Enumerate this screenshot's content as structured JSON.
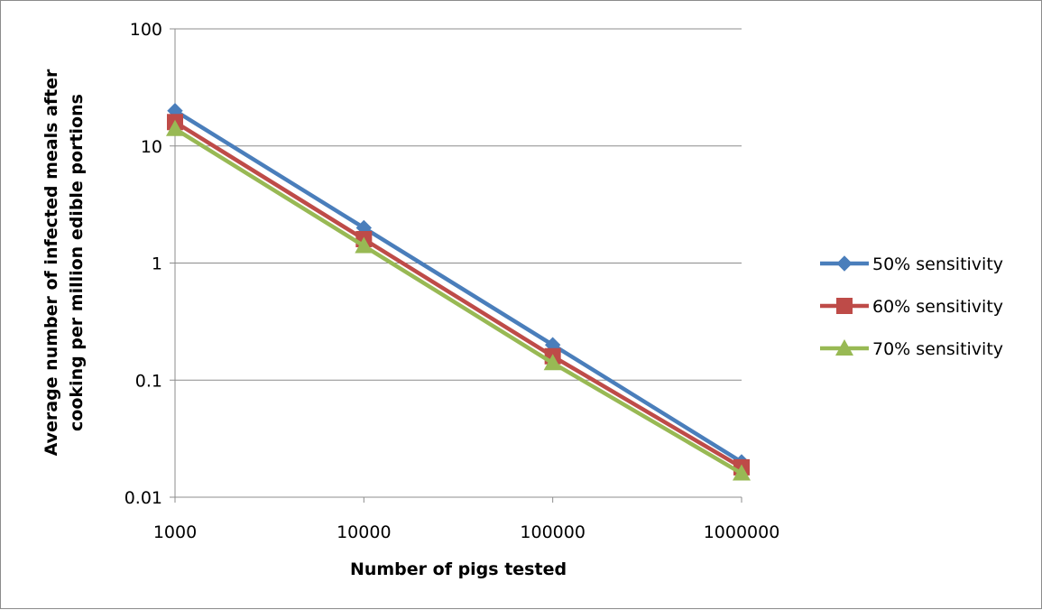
{
  "chart_data": {
    "type": "line",
    "title": "",
    "xlabel": "Number of pigs tested",
    "ylabel": "Average number of infected meals after cooking per million edible portions",
    "ylabel_lines": [
      "Average number of infected meals after",
      "cooking per million edible portions"
    ],
    "x_scale": "log",
    "y_scale": "log",
    "x": [
      1000,
      10000,
      100000,
      1000000
    ],
    "x_tick_labels": [
      "1000",
      "10000",
      "100000",
      "1000000"
    ],
    "y_ticks": [
      0.01,
      0.1,
      1,
      10,
      100
    ],
    "y_tick_labels": [
      "0.01",
      "0.1",
      "1",
      "10",
      "100"
    ],
    "xlim": [
      1000,
      1000000
    ],
    "ylim": [
      0.01,
      100
    ],
    "grid": "horizontal major gridlines",
    "legend_position": "right",
    "series": [
      {
        "name": "50% sensitivity",
        "values": [
          20,
          2,
          0.2,
          0.02
        ],
        "color": "#4a7ebb",
        "marker": "diamond"
      },
      {
        "name": "60% sensitivity",
        "values": [
          16,
          1.6,
          0.16,
          0.018
        ],
        "color": "#be4b48",
        "marker": "square"
      },
      {
        "name": "70% sensitivity",
        "values": [
          14,
          1.4,
          0.14,
          0.016
        ],
        "color": "#98b954",
        "marker": "triangle"
      }
    ]
  }
}
